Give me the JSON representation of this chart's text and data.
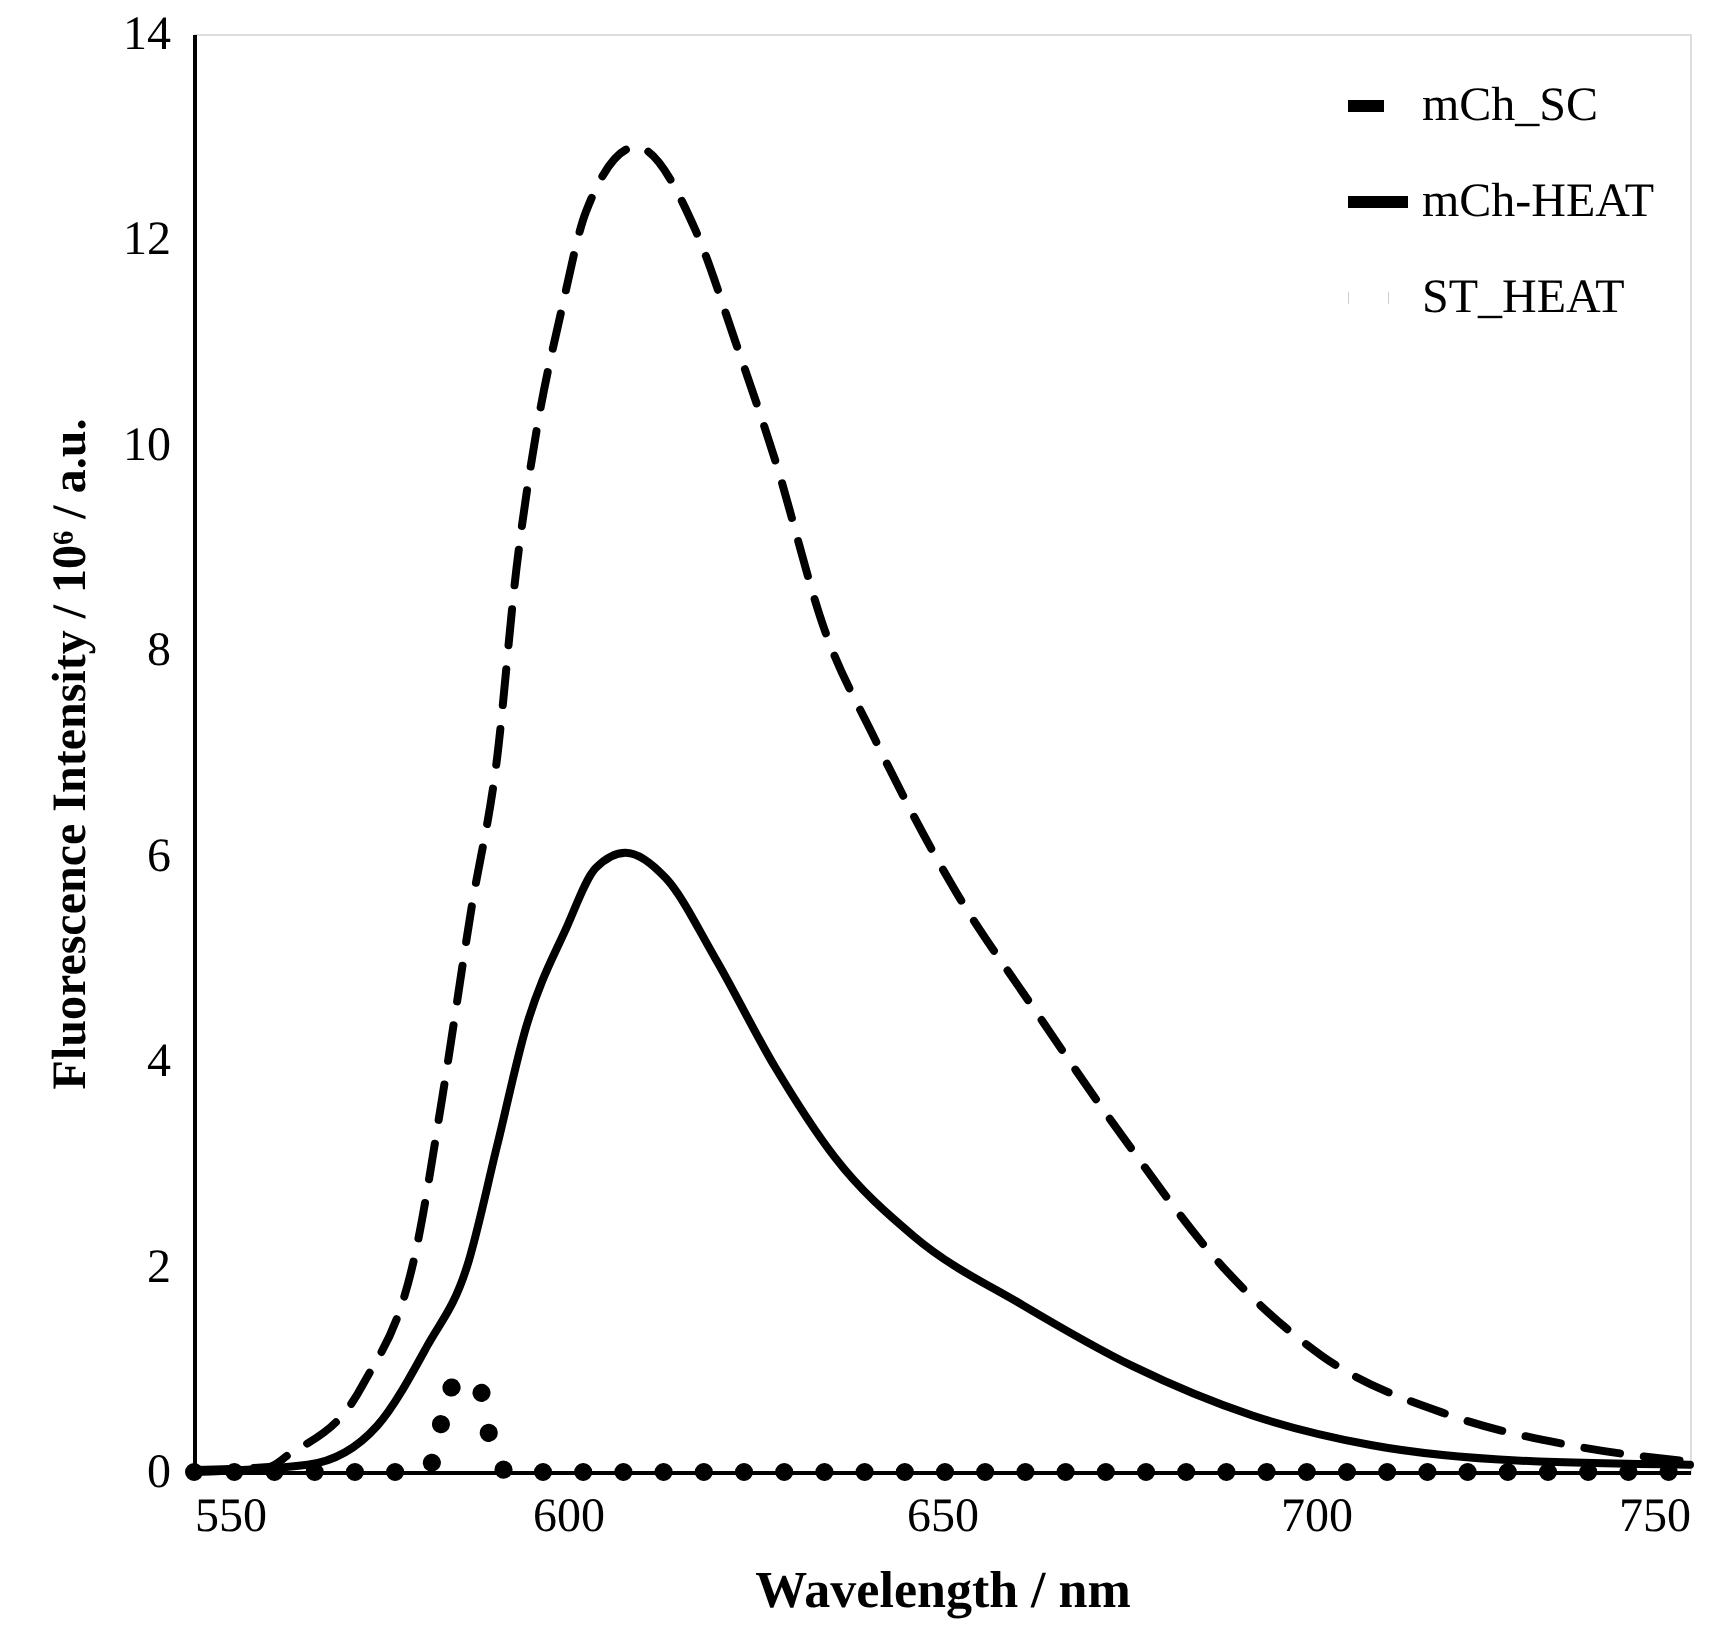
{
  "chart_data": {
    "type": "line",
    "xlabel": "Wavelength  / nm",
    "ylabel": "Fluorescence Intensity / 10⁶ / a.u.",
    "xlim": [
      550,
      750
    ],
    "xticks": [
      550,
      600,
      650,
      700,
      750
    ],
    "ylim": [
      0,
      14
    ],
    "yticks": [
      0,
      2,
      4,
      6,
      8,
      10,
      12,
      14
    ],
    "grid": false,
    "legend": "top right",
    "series": [
      {
        "name": "mCh_SC",
        "color": "#000000",
        "line_style": "dashed",
        "x": [
          550,
          560,
          562.5,
          572.5,
          579.8,
          583.2,
          587.1,
          590.5,
          593.1,
          595.8,
          599.1,
          602.4,
          609.1,
          617.1,
          622.4,
          627.7,
          634.3,
          641,
          651.6,
          662.2,
          674.2,
          687.5,
          700.8,
          718,
          734,
          750
        ],
        "values": [
          0.02,
          0.05,
          0.16,
          0.84,
          2.2,
          3.65,
          5.49,
          6.94,
          8.79,
          10.14,
          11.3,
          12.27,
          12.9,
          12.08,
          11.0,
          9.85,
          8.2,
          7.14,
          5.68,
          4.52,
          3.26,
          2.0,
          1.13,
          0.55,
          0.26,
          0.1
        ]
      },
      {
        "name": "mCh-HEAT",
        "color": "#000000",
        "line_style": "solid",
        "x": [
          550,
          565.2,
          574.5,
          581.2,
          586.5,
          590.5,
          594.4,
          599.8,
          603.7,
          607.7,
          613.1,
          619.7,
          627.7,
          635.6,
          646.3,
          660.9,
          675.5,
          691.5,
          707.5,
          727.4,
          750
        ],
        "values": [
          0,
          0.07,
          0.45,
          1.23,
          2.0,
          3.17,
          4.33,
          5.3,
          5.88,
          6.03,
          5.78,
          5.0,
          3.94,
          3.07,
          2.29,
          1.62,
          1.03,
          0.55,
          0.26,
          0.11,
          0.07
        ]
      },
      {
        "name": "ST_HEAT",
        "color": "#000000",
        "line_style": "dotted",
        "x": [
          550,
          580,
          582.4,
          583.7,
          587.8,
          589.8,
          592,
          750
        ],
        "values": [
          0,
          0,
          0.16,
          0.79,
          0.89,
          0.26,
          0,
          0
        ]
      }
    ]
  }
}
